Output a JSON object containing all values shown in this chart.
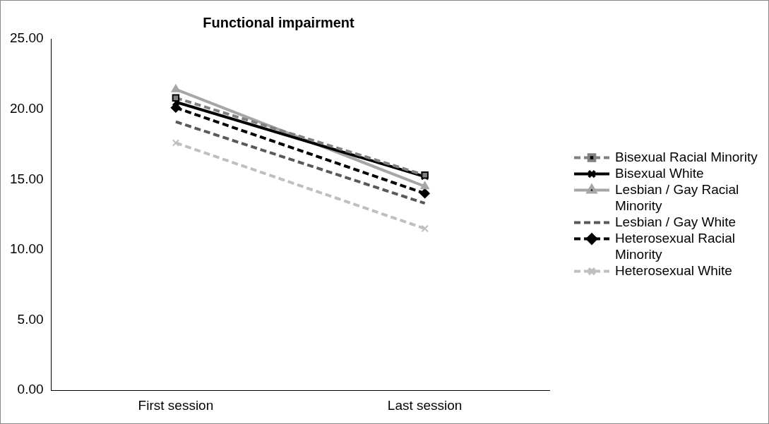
{
  "chart_data": {
    "type": "line",
    "title": "Functional impairment",
    "categories": [
      "First session",
      "Last session"
    ],
    "series": [
      {
        "name": "Bisexual Racial Minority",
        "color": "#808080",
        "values": [
          20.8,
          15.3
        ],
        "marker": "square",
        "line_style": "dashed"
      },
      {
        "name": "Bisexual White",
        "color": "#000000",
        "values": [
          20.5,
          15.2
        ],
        "marker": "cross",
        "line_style": "solid"
      },
      {
        "name": "Lesbian / Gay Racial Minority",
        "color": "#a6a6a6",
        "values": [
          21.4,
          14.5
        ],
        "marker": "triangle",
        "line_style": "solid"
      },
      {
        "name": "Lesbian / Gay White",
        "color": "#595959",
        "values": [
          19.1,
          13.3
        ],
        "marker": "none",
        "line_style": "dashed"
      },
      {
        "name": "Heterosexual Racial Minority",
        "color": "#000000",
        "values": [
          20.1,
          14.0
        ],
        "marker": "diamond",
        "line_style": "dashed"
      },
      {
        "name": "Heterosexual White",
        "color": "#bfbfbf",
        "values": [
          17.6,
          11.5
        ],
        "marker": "cross",
        "line_style": "dashed"
      }
    ],
    "ylim": [
      0,
      25
    ],
    "yticks": [
      {
        "value": 0,
        "label": "0.00"
      },
      {
        "value": 5,
        "label": "5.00"
      },
      {
        "value": 10,
        "label": "10.00"
      },
      {
        "value": 15,
        "label": "15.00"
      },
      {
        "value": 20,
        "label": "20.00"
      },
      {
        "value": 25,
        "label": "25.00"
      }
    ],
    "grid": false,
    "legend": "right"
  }
}
